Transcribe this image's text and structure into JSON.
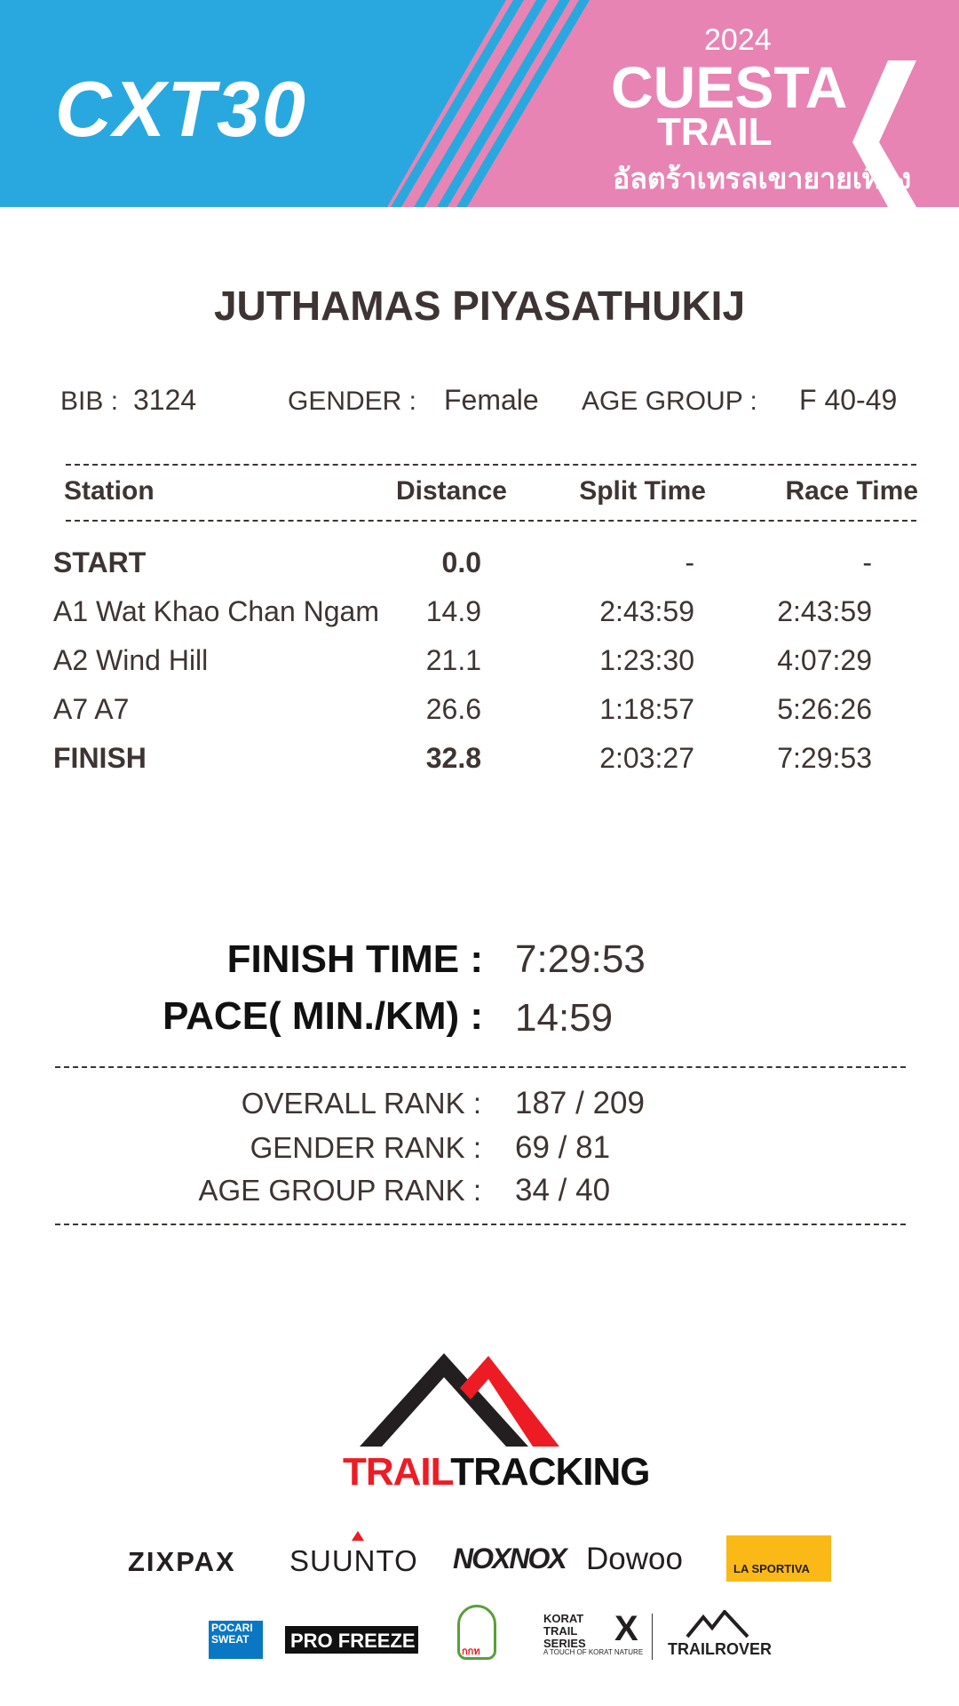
{
  "header": {
    "left_logo": "CXT30",
    "right_logo": {
      "year": "2024",
      "line1": "CUESTA",
      "line2": "TRAIL",
      "thai": "อัลตร้าเทรลเขายายเที่ยง"
    },
    "colors": {
      "blue": "#29a8df",
      "pink": "#e784b4"
    }
  },
  "runner": {
    "name": "JUTHAMAS PIYASATHUKIJ",
    "bib_label": "BIB :",
    "bib": "3124",
    "gender_label": "GENDER  :",
    "gender": "Female",
    "age_group_label": "AGE GROUP  :",
    "age_group": "F 40-49"
  },
  "table": {
    "headers": [
      "Station",
      "Distance",
      "Split Time",
      "Race Time"
    ],
    "rows": [
      {
        "station": "START",
        "distance": "0.0",
        "split": "-",
        "race": "-",
        "bold": true
      },
      {
        "station": "A1 Wat Khao Chan Ngam",
        "distance": "14.9",
        "split": "2:43:59",
        "race": "2:43:59"
      },
      {
        "station": "A2 Wind Hill",
        "distance": "21.1",
        "split": "1:23:30",
        "race": "4:07:29"
      },
      {
        "station": "A7 A7",
        "distance": "26.6",
        "split": "1:18:57",
        "race": "5:26:26"
      },
      {
        "station": "FINISH",
        "distance": "32.8",
        "split": "2:03:27",
        "race": "7:29:53",
        "bold": true
      }
    ]
  },
  "summary": {
    "finish_time_label": "FINISH TIME :",
    "finish_time": "7:29:53",
    "pace_label": "PACE( MIN./KM) :",
    "pace": "14:59",
    "overall_rank_label": "OVERALL RANK  :",
    "overall_rank": "187 / 209",
    "gender_rank_label": "GENDER RANK  :",
    "gender_rank": "69 / 81",
    "age_group_rank_label": "AGE GROUP RANK :",
    "age_group_rank": "34 / 40"
  },
  "footer": {
    "main_logo": {
      "part1": "TRAIL",
      "part2": "TRACKING"
    },
    "sponsors_row1": [
      "ZIXPAX",
      "SUUNTO",
      "NOXNOX",
      "Dowoo",
      "LA SPORTIVA"
    ],
    "sponsors_row2": [
      "POCARI SWEAT",
      "PRO FREEZE",
      "กกท",
      "KORAT TRAIL SERIES",
      "TRAILROVER"
    ],
    "korat_tagline": "A TOUCH OF KORAT NATURE"
  }
}
